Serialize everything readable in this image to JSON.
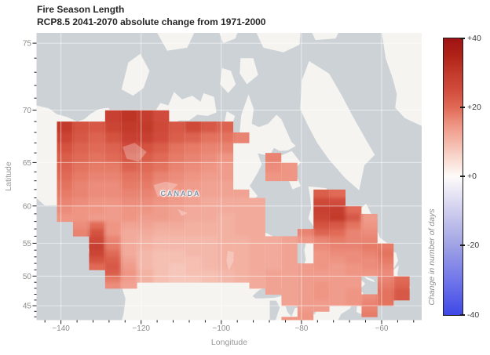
{
  "title": {
    "line1": "Fire Season Length",
    "line2": "RCP8.5 2041-2070 absolute change from 1971-2000"
  },
  "map": {
    "country_label": "CANADA"
  },
  "axes": {
    "x_label": "Longitude",
    "y_label": "Latitude",
    "x_ticks": [
      -140,
      -120,
      -100,
      -80,
      -60
    ],
    "x_tick_labels": [
      "−140",
      "−120",
      "−100",
      "−80",
      "−60"
    ],
    "x_minor_step": 4,
    "y_ticks": [
      45,
      50,
      55,
      60,
      65,
      70,
      75
    ],
    "y_tick_labels": [
      "45",
      "50",
      "55",
      "60",
      "65",
      "70",
      "75"
    ],
    "y_minor_step": 1
  },
  "colorbar": {
    "label": "Change in number of days",
    "tick_values": [
      40,
      20,
      0,
      -20,
      -40
    ],
    "tick_labels": [
      "+40",
      "+20",
      "+0",
      "-20",
      "-40"
    ],
    "min": -40,
    "max": 40
  },
  "colors": {
    "ocean": "#cdd2d7",
    "land": "#f5f4f0",
    "gridline": "rgba(255,255,255,0.55)",
    "tick": "#1c1c1c",
    "canada_label": "#7d90a4",
    "colormap_stops": [
      [
        -40,
        "#3f48e6"
      ],
      [
        -30,
        "#7076ea"
      ],
      [
        -20,
        "#9fa2e4"
      ],
      [
        -10,
        "#cfcdee"
      ],
      [
        0,
        "#fdfbf9"
      ],
      [
        5,
        "#f9dcd2"
      ],
      [
        10,
        "#f4b8aa"
      ],
      [
        15,
        "#ef9584"
      ],
      [
        20,
        "#e06a56"
      ],
      [
        25,
        "#d14c3c"
      ],
      [
        30,
        "#c23a2b"
      ],
      [
        35,
        "#b02318"
      ],
      [
        40,
        "#9e1214"
      ]
    ]
  },
  "chart_data": {
    "type": "heatmap",
    "subtype": "geographic-raster-map",
    "title": "Fire Season Length",
    "subtitle": "RCP8.5 2041-2070 absolute change from 1971-2000",
    "xlabel": "Longitude",
    "ylabel": "Latitude",
    "colorbar_label": "Change in number of days",
    "units": "days",
    "projection": "mercator",
    "lon_range": [
      -146.1,
      -50.0
    ],
    "lat_range": [
      42.4,
      75.65
    ],
    "value_range": [
      -40,
      40
    ],
    "grid": {
      "comment": "Change in fire season length (days). Rows north to south, 1 deg lat bands starting at lat 70; columns west to east, 4 deg lon bands starting at lon -141. 0 = no data.",
      "lon_start": -141,
      "dlon": 4,
      "lat_start": 70,
      "dlat": -1,
      "no_data": 0,
      "values": [
        [
          0,
          0,
          0,
          28,
          31,
          29,
          25,
          0,
          0,
          0,
          0,
          0,
          0,
          0,
          0,
          0,
          0,
          0,
          0,
          0,
          0,
          0
        ],
        [
          30,
          24,
          23,
          27,
          30,
          30,
          26,
          23,
          26,
          23,
          21,
          0,
          0,
          0,
          0,
          0,
          0,
          0,
          0,
          0,
          0,
          0
        ],
        [
          27,
          23,
          21,
          24,
          28,
          28,
          25,
          22,
          21,
          19,
          19,
          17,
          0,
          0,
          0,
          0,
          0,
          0,
          0,
          0,
          0,
          0
        ],
        [
          24,
          21,
          20,
          21,
          25,
          24,
          22,
          19,
          18,
          17,
          17,
          0,
          0,
          0,
          0,
          0,
          0,
          0,
          0,
          0,
          0,
          0
        ],
        [
          22,
          20,
          19,
          20,
          23,
          22,
          20,
          18,
          17,
          16,
          15,
          0,
          0,
          17,
          0,
          0,
          0,
          0,
          0,
          0,
          0,
          0
        ],
        [
          21,
          19,
          18,
          18,
          21,
          20,
          19,
          17,
          16,
          15,
          14,
          0,
          0,
          16,
          15,
          0,
          0,
          0,
          0,
          0,
          0,
          0
        ],
        [
          20,
          18,
          17,
          17,
          19,
          19,
          17,
          16,
          15,
          14,
          14,
          0,
          0,
          15,
          15,
          0,
          0,
          0,
          0,
          0,
          0,
          0
        ],
        [
          19,
          17,
          16,
          16,
          18,
          18,
          16,
          15,
          14,
          13,
          13,
          0,
          0,
          0,
          0,
          0,
          0,
          0,
          0,
          0,
          0,
          0
        ],
        [
          18,
          17,
          16,
          16,
          17,
          17,
          16,
          15,
          14,
          13,
          13,
          13,
          0,
          0,
          0,
          0,
          22,
          20,
          0,
          0,
          0,
          0
        ],
        [
          17,
          16,
          15,
          15,
          16,
          16,
          15,
          14,
          13,
          12,
          12,
          12,
          12,
          0,
          0,
          0,
          26,
          25,
          0,
          0,
          0,
          0
        ],
        [
          16,
          15,
          15,
          14,
          15,
          15,
          14,
          13,
          12,
          12,
          12,
          12,
          12,
          0,
          0,
          0,
          28,
          29,
          20,
          0,
          0,
          0
        ],
        [
          15,
          15,
          14,
          14,
          15,
          14,
          14,
          13,
          12,
          12,
          11,
          12,
          12,
          0,
          0,
          0,
          27,
          30,
          23,
          14,
          0,
          0
        ],
        [
          0,
          16,
          20,
          15,
          13,
          13,
          12,
          12,
          11,
          11,
          11,
          12,
          12,
          0,
          0,
          0,
          24,
          23,
          19,
          15,
          0,
          0
        ],
        [
          0,
          17,
          24,
          15,
          12,
          12,
          11,
          11,
          11,
          11,
          11,
          12,
          12,
          0,
          0,
          17,
          21,
          20,
          17,
          16,
          0,
          0
        ],
        [
          0,
          0,
          26,
          17,
          12,
          11,
          10,
          10,
          10,
          10,
          11,
          11,
          12,
          12,
          13,
          15,
          17,
          18,
          17,
          17,
          0,
          0
        ],
        [
          0,
          0,
          28,
          18,
          12,
          11,
          10,
          10,
          10,
          10,
          11,
          11,
          12,
          12,
          13,
          0,
          16,
          17,
          17,
          18,
          18,
          0
        ],
        [
          0,
          0,
          27,
          20,
          12,
          10,
          9,
          9,
          10,
          10,
          11,
          11,
          12,
          12,
          13,
          0,
          15,
          16,
          16,
          17,
          19,
          0
        ],
        [
          0,
          0,
          24,
          22,
          13,
          10,
          9,
          9,
          9,
          10,
          11,
          11,
          12,
          12,
          13,
          0,
          15,
          15,
          16,
          16,
          18,
          0
        ],
        [
          0,
          0,
          20,
          23,
          14,
          10,
          9,
          8,
          9,
          10,
          11,
          11,
          12,
          12,
          13,
          14,
          15,
          14,
          15,
          16,
          17,
          0
        ],
        [
          0,
          0,
          0,
          22,
          15,
          11,
          9,
          8,
          9,
          9,
          10,
          11,
          12,
          13,
          13,
          14,
          14,
          14,
          15,
          15,
          16,
          0
        ],
        [
          0,
          0,
          0,
          18,
          14,
          11,
          9,
          8,
          8,
          9,
          10,
          11,
          12,
          13,
          13,
          14,
          14,
          14,
          14,
          0,
          17,
          20
        ],
        [
          0,
          0,
          0,
          16,
          13,
          0,
          0,
          0,
          0,
          0,
          0,
          0,
          12,
          13,
          13,
          14,
          15,
          14,
          14,
          0,
          18,
          21
        ],
        [
          0,
          0,
          0,
          0,
          0,
          0,
          0,
          0,
          0,
          0,
          0,
          0,
          0,
          13,
          13,
          14,
          15,
          14,
          15,
          0,
          19,
          23
        ],
        [
          0,
          0,
          0,
          0,
          0,
          0,
          0,
          0,
          0,
          0,
          0,
          0,
          0,
          0,
          13,
          14,
          15,
          14,
          15,
          16,
          19,
          23
        ],
        [
          0,
          0,
          0,
          0,
          0,
          0,
          0,
          0,
          0,
          0,
          0,
          0,
          0,
          0,
          13,
          14,
          14,
          14,
          15,
          17,
          19,
          0
        ],
        [
          0,
          0,
          0,
          0,
          0,
          0,
          0,
          0,
          0,
          0,
          0,
          0,
          0,
          0,
          0,
          14,
          14,
          0,
          0,
          17,
          0,
          0
        ],
        [
          0,
          0,
          0,
          0,
          0,
          0,
          0,
          0,
          0,
          0,
          0,
          0,
          0,
          0,
          0,
          15,
          0,
          0,
          0,
          18,
          0,
          0
        ],
        [
          0,
          0,
          0,
          0,
          0,
          0,
          0,
          0,
          0,
          0,
          0,
          0,
          0,
          0,
          15,
          15,
          0,
          0,
          0,
          0,
          0,
          0
        ]
      ]
    }
  }
}
